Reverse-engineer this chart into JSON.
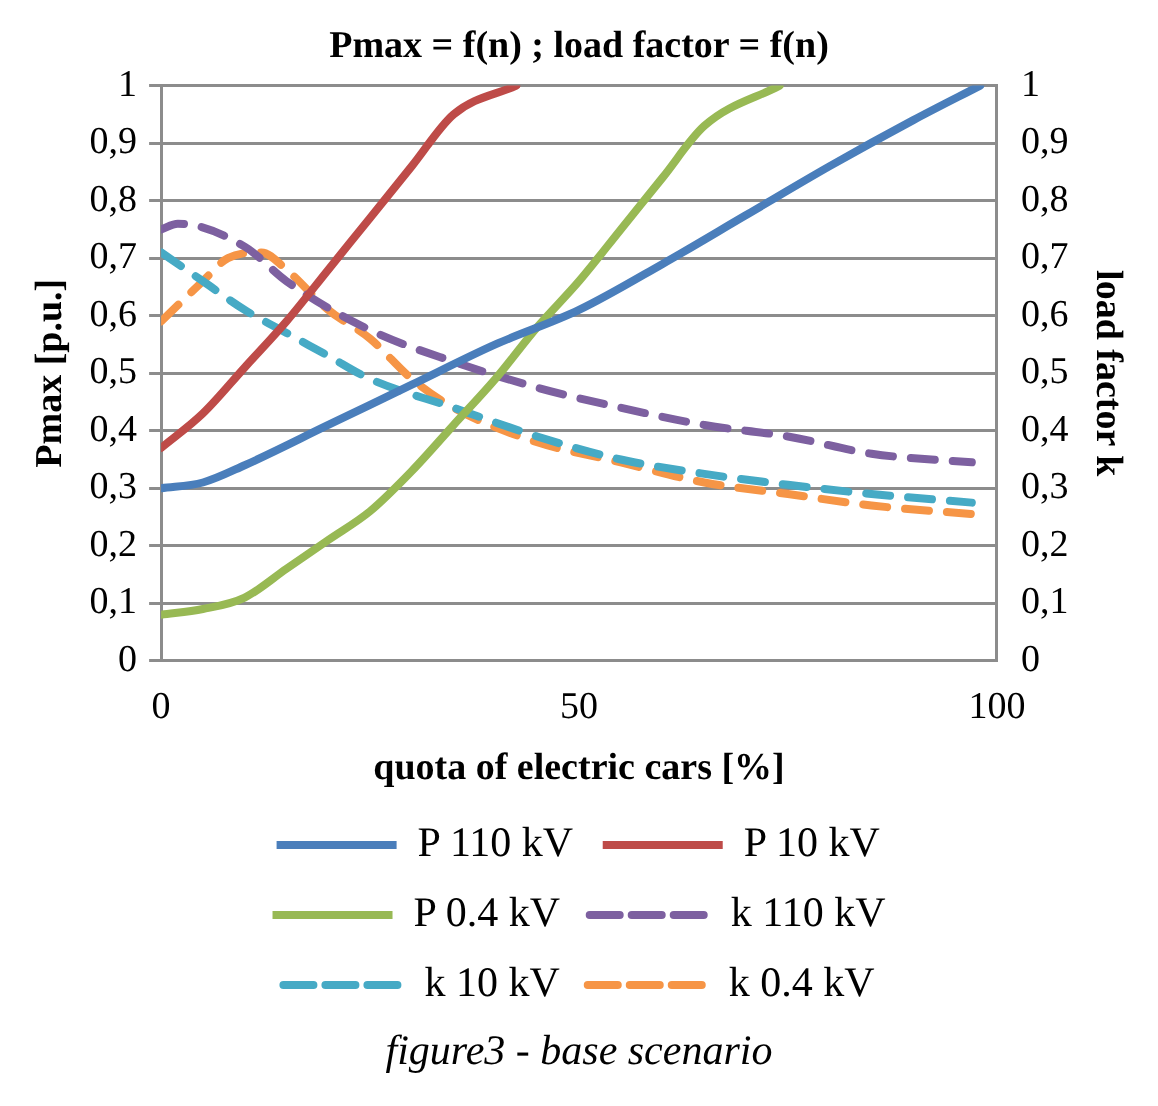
{
  "chart_data": {
    "type": "line",
    "title": "Pmax = f(n) ; load factor = f(n)",
    "xlabel": "quota of electric cars [%]",
    "ylabel": "Pmax [p.u.]",
    "y2label": "load factor k",
    "xlim": [
      0,
      100
    ],
    "xticks": [
      0,
      50,
      100
    ],
    "ylim": [
      0,
      1
    ],
    "yticks": [
      0,
      {
        "value": 0.1,
        "label": "0,1"
      },
      {
        "value": 0.2,
        "label": "0,2"
      },
      {
        "value": 0.3,
        "label": "0,3"
      },
      {
        "value": 0.4,
        "label": "0,4"
      },
      {
        "value": 0.5,
        "label": "0,5"
      },
      {
        "value": 0.6,
        "label": "0,6"
      },
      {
        "value": 0.7,
        "label": "0,7"
      },
      {
        "value": 0.8,
        "label": "0,8"
      },
      {
        "value": 0.9,
        "label": "0,9"
      },
      1
    ],
    "y2lim": [
      0,
      1
    ],
    "y2ticks": [
      0,
      {
        "value": 0.1,
        "label": "0,1"
      },
      {
        "value": 0.2,
        "label": "0,2"
      },
      {
        "value": 0.3,
        "label": "0,3"
      },
      {
        "value": 0.4,
        "label": "0,4"
      },
      {
        "value": 0.5,
        "label": "0,5"
      },
      {
        "value": 0.6,
        "label": "0,6"
      },
      {
        "value": 0.7,
        "label": "0,7"
      },
      {
        "value": 0.8,
        "label": "0,8"
      },
      {
        "value": 0.9,
        "label": "0,9"
      },
      1
    ],
    "grid": "y",
    "legend": "bottom",
    "marker": "none",
    "series": [
      {
        "name": "P 110 kV",
        "color": "#4a7ebb",
        "line_style": "solid",
        "x": [
          0,
          5,
          10,
          20,
          30,
          40,
          50,
          60,
          70,
          80,
          90,
          98
        ],
        "values": [
          0.3,
          0.31,
          0.34,
          0.41,
          0.48,
          0.55,
          0.61,
          0.69,
          0.775,
          0.86,
          0.94,
          1.0
        ]
      },
      {
        "name": "P 10 kV",
        "color": "#be4b48",
        "line_style": "solid",
        "x": [
          0,
          5,
          10,
          15,
          20,
          25,
          30,
          35,
          42.5
        ],
        "values": [
          0.37,
          0.43,
          0.51,
          0.59,
          0.68,
          0.77,
          0.86,
          0.95,
          1.0
        ]
      },
      {
        "name": "P 0.4 kV",
        "color": "#98b954",
        "line_style": "solid",
        "x": [
          0,
          5,
          10,
          15,
          20,
          25,
          30,
          35,
          40,
          45,
          50,
          55,
          60,
          65,
          74
        ],
        "values": [
          0.08,
          0.09,
          0.11,
          0.16,
          0.21,
          0.26,
          0.33,
          0.41,
          0.49,
          0.58,
          0.66,
          0.75,
          0.84,
          0.93,
          1.0
        ]
      },
      {
        "name": "k 110 kV",
        "color": "#7d60a0",
        "line_style": "dashed",
        "x": [
          0,
          2,
          10,
          15,
          25,
          35,
          45,
          55,
          65,
          75,
          85,
          97
        ],
        "values": [
          0.75,
          0.76,
          0.72,
          0.66,
          0.575,
          0.52,
          0.475,
          0.44,
          0.41,
          0.39,
          0.36,
          0.345
        ]
      },
      {
        "name": "k 10 kV",
        "color": "#46aac5",
        "line_style": "dashed",
        "x": [
          0,
          5,
          10,
          15,
          20,
          25,
          35,
          45,
          55,
          65,
          75,
          85,
          97
        ],
        "values": [
          0.71,
          0.66,
          0.61,
          0.57,
          0.53,
          0.49,
          0.44,
          0.39,
          0.35,
          0.325,
          0.306,
          0.29,
          0.275
        ]
      },
      {
        "name": "k 0.4 kV",
        "color": "#f69546",
        "line_style": "dashed",
        "x": [
          0,
          5,
          8,
          12,
          15,
          20,
          25,
          30,
          35,
          45,
          55,
          65,
          75,
          85,
          97
        ],
        "values": [
          0.59,
          0.66,
          0.7,
          0.71,
          0.68,
          0.61,
          0.56,
          0.49,
          0.44,
          0.38,
          0.345,
          0.31,
          0.29,
          0.27,
          0.255
        ]
      }
    ],
    "annotations": [
      "figure3 - base scenario"
    ]
  }
}
